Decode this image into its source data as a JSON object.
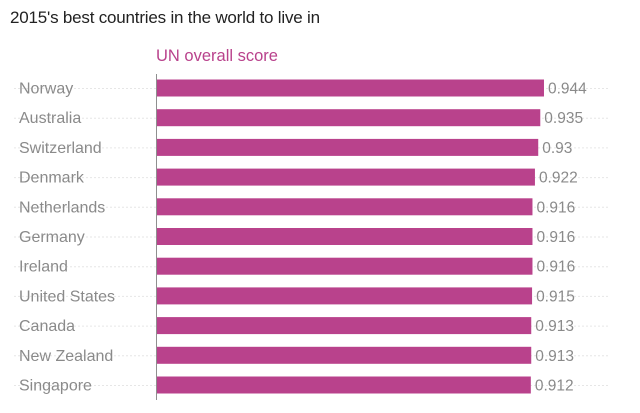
{
  "title": "2015's best countries in the world to live in",
  "chart_data": {
    "type": "bar",
    "orientation": "horizontal",
    "title": "2015's best countries in the world to live in",
    "series": [
      {
        "name": "UN overall score",
        "color": "#b9428c",
        "values": [
          0.944,
          0.935,
          0.93,
          0.922,
          0.916,
          0.916,
          0.916,
          0.915,
          0.913,
          0.913,
          0.912
        ]
      }
    ],
    "categories": [
      "Norway",
      "Australia",
      "Switzerland",
      "Denmark",
      "Netherlands",
      "Germany",
      "Ireland",
      "United States",
      "Canada",
      "New Zealand",
      "Singapore"
    ],
    "value_labels": [
      "0.944",
      "0.935",
      "0.93",
      "0.922",
      "0.916",
      "0.916",
      "0.916",
      "0.915",
      "0.913",
      "0.913",
      "0.912"
    ],
    "xlim": [
      0,
      1.0
    ],
    "xlabel": "",
    "ylabel": "",
    "legend": "top-left"
  }
}
